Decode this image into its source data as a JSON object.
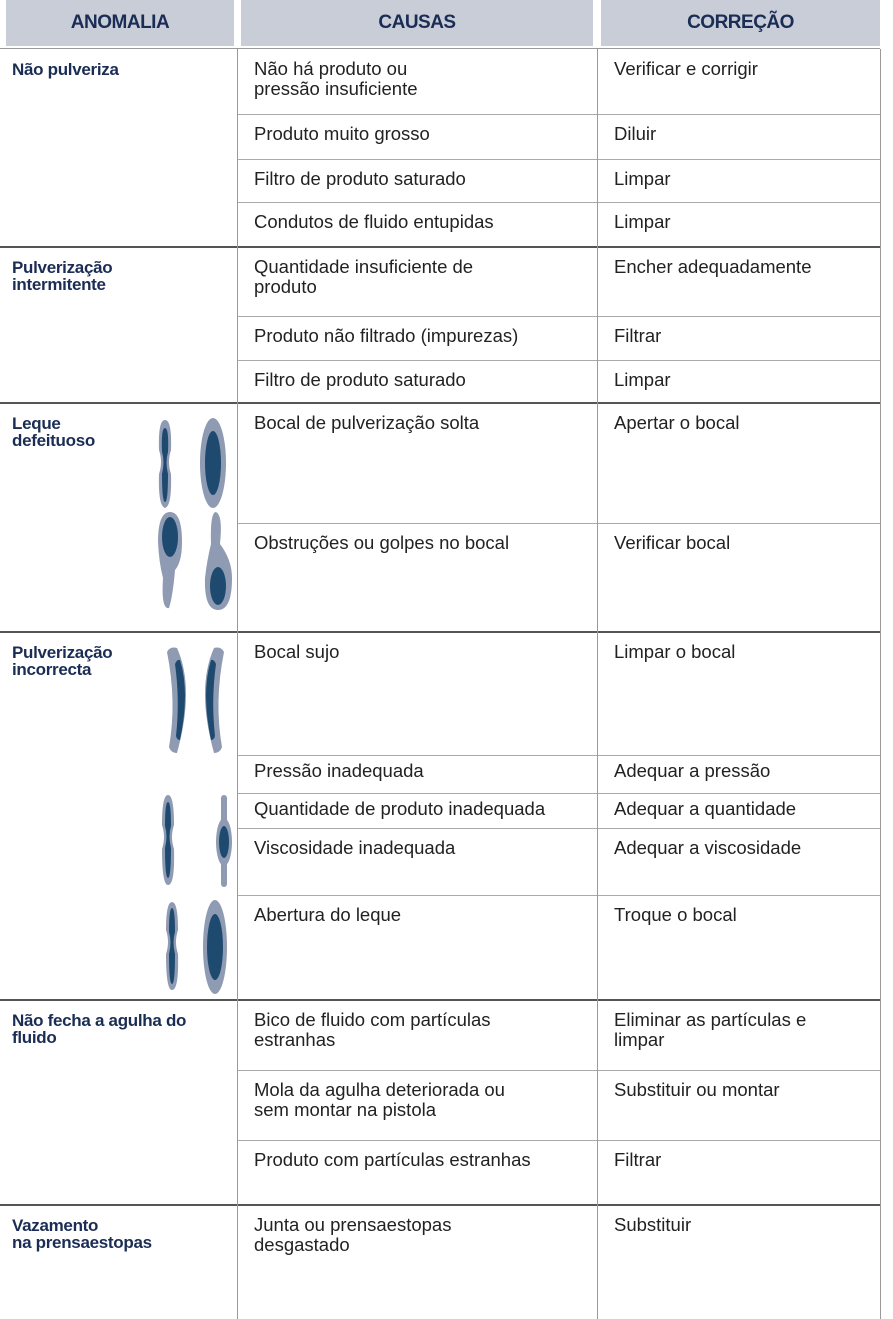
{
  "header": {
    "columns": [
      "ANOMALIA",
      "CAUSAS",
      "CORREÇÃO"
    ]
  },
  "groups": [
    {
      "anomaly": "Não pulveriza",
      "rows": [
        {
          "cause": "Não há produto ou\npressão insuficiente",
          "correction": "Verificar e corrigir"
        },
        {
          "cause": "Produto muito grosso",
          "correction": "Diluir"
        },
        {
          "cause": "Filtro de produto saturado",
          "correction": "Limpar"
        },
        {
          "cause": "Condutos de fluido entupidas",
          "correction": "Limpar"
        }
      ]
    },
    {
      "anomaly": "Pulverização\nintermitente",
      "rows": [
        {
          "cause": "Quantidade insuficiente de\nproduto",
          "correction": "Encher adequadamente"
        },
        {
          "cause": "Produto não filtrado (impurezas)",
          "correction": "Filtrar"
        },
        {
          "cause": "Filtro de produto saturado",
          "correction": "Limpar"
        }
      ]
    },
    {
      "anomaly": "Leque\ndefeituoso",
      "rows": [
        {
          "cause": "Bocal de pulverização solta",
          "correction": "Apertar o bocal"
        },
        {
          "cause": "Obstruções ou golpes no bocal",
          "correction": "Verificar bocal"
        }
      ]
    },
    {
      "anomaly": "Pulverização\nincorrecta",
      "rows": [
        {
          "cause": "Bocal sujo",
          "correction": "Limpar o bocal"
        },
        {
          "cause": "Pressão inadequada",
          "correction": "Adequar a pressão"
        },
        {
          "cause": "Quantidade de produto inadequada",
          "correction": "Adequar a quantidade"
        },
        {
          "cause": "Viscosidade inadequada",
          "correction": "Adequar a viscosidade"
        },
        {
          "cause": "Abertura do leque",
          "correction": "Troque o bocal"
        }
      ]
    },
    {
      "anomaly": "Não fecha a agulha do\nfluido",
      "rows": [
        {
          "cause": "Bico de fluido com partículas\nestranhas",
          "correction": "Eliminar as partículas e\nlimpar"
        },
        {
          "cause": "Mola da agulha deteriorada ou\nsem montar na pistola",
          "correction": "Substituir ou montar"
        },
        {
          "cause": "Produto com partículas estranhas",
          "correction": "Filtrar"
        }
      ]
    },
    {
      "anomaly": "Vazamento\nna prensaestopas",
      "rows": [
        {
          "cause": "Junta ou prensaestopas\ndesgastado",
          "correction": "Substituir"
        }
      ]
    }
  ]
}
